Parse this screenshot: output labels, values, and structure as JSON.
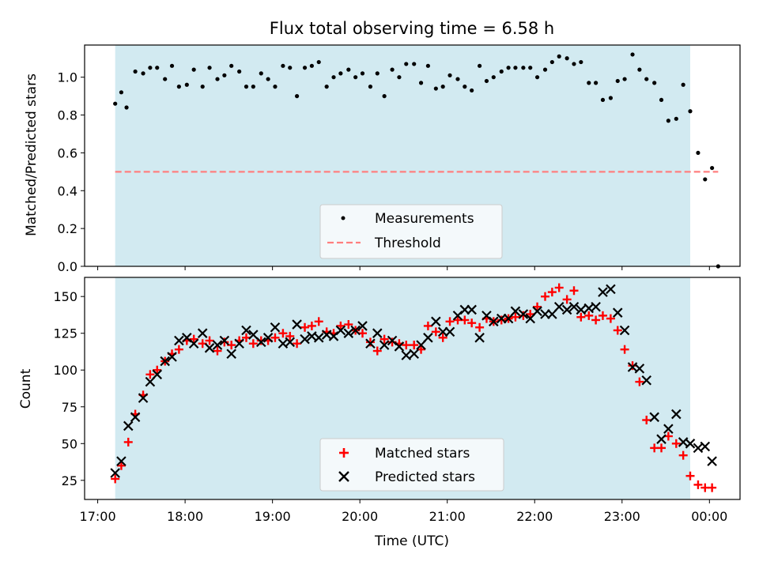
{
  "chart_data": [
    {
      "type": "scatter",
      "title": "Flux total observing time = 6.58 h",
      "ylabel": "Matched/Predicted stars",
      "ylim": [
        0,
        1.17
      ],
      "xlim": [
        16.85,
        24.35
      ],
      "ytick_labels": [
        "0.0",
        "0.2",
        "0.4",
        "0.6",
        "0.8",
        "1.0"
      ],
      "ytick_values": [
        0,
        0.2,
        0.4,
        0.6,
        0.8,
        1.0
      ],
      "shaded_region": {
        "x_start": 17.2,
        "x_end": 23.78,
        "color": "#add8e6"
      },
      "threshold": {
        "value": 0.5,
        "x_start": 17.2,
        "x_end": 24.1,
        "color": "#ff7f7f",
        "style": "dashed"
      },
      "legend": {
        "placement": "lower center",
        "entries": [
          "Measurements",
          "Threshold"
        ]
      },
      "series": [
        {
          "name": "Measurements",
          "marker": "dot",
          "color": "#000000",
          "x": [
            17.2,
            17.27,
            17.33,
            17.43,
            17.52,
            17.6,
            17.68,
            17.77,
            17.85,
            17.93,
            18.02,
            18.1,
            18.2,
            18.28,
            18.37,
            18.45,
            18.53,
            18.62,
            18.7,
            18.78,
            18.87,
            18.95,
            19.03,
            19.12,
            19.2,
            19.28,
            19.37,
            19.45,
            19.53,
            19.62,
            19.7,
            19.78,
            19.87,
            19.95,
            20.03,
            20.12,
            20.2,
            20.28,
            20.37,
            20.45,
            20.53,
            20.62,
            20.7,
            20.78,
            20.87,
            20.95,
            21.03,
            21.12,
            21.2,
            21.28,
            21.37,
            21.45,
            21.53,
            21.62,
            21.7,
            21.78,
            21.87,
            21.95,
            22.03,
            22.12,
            22.2,
            22.28,
            22.37,
            22.45,
            22.53,
            22.62,
            22.7,
            22.78,
            22.87,
            22.95,
            23.03,
            23.12,
            23.2,
            23.28,
            23.37,
            23.45,
            23.53,
            23.62,
            23.7,
            23.78,
            23.87,
            23.95,
            24.03
          ],
          "y": [
            0.86,
            0.92,
            0.84,
            1.03,
            1.02,
            1.05,
            1.05,
            0.99,
            1.06,
            0.95,
            0.96,
            1.04,
            0.95,
            1.05,
            0.99,
            1.01,
            1.06,
            1.03,
            0.95,
            0.95,
            1.02,
            0.99,
            0.95,
            1.06,
            1.05,
            0.9,
            1.05,
            1.06,
            1.08,
            0.95,
            1.0,
            1.02,
            1.04,
            1.0,
            1.02,
            0.95,
            1.02,
            0.9,
            1.04,
            1.0,
            1.07,
            1.07,
            0.97,
            1.06,
            0.94,
            0.95,
            1.01,
            0.99,
            0.95,
            0.93,
            1.06,
            0.98,
            1.0,
            1.03,
            1.05,
            1.05,
            1.05,
            1.05,
            1.0,
            1.04,
            1.08,
            1.11,
            1.1,
            1.07,
            1.08,
            0.97,
            0.97,
            0.88,
            0.89,
            0.98,
            0.99,
            1.12,
            1.04,
            0.99,
            0.97,
            0.88,
            0.77,
            0.78,
            0.96,
            0.82,
            0.6,
            0.46,
            0.52
          ]
        }
      ],
      "extra_points": [
        {
          "x": 24.1,
          "y": 0.0
        }
      ]
    },
    {
      "type": "scatter",
      "xlabel": "Time (UTC)",
      "ylabel": "Count",
      "ylim": [
        12,
        163
      ],
      "xlim": [
        16.85,
        24.35
      ],
      "ytick_labels": [
        "25",
        "50",
        "75",
        "100",
        "125",
        "150"
      ],
      "ytick_values": [
        25,
        50,
        75,
        100,
        125,
        150
      ],
      "xtick_labels": [
        "17:00",
        "18:00",
        "19:00",
        "20:00",
        "21:00",
        "22:00",
        "23:00",
        "00:00"
      ],
      "xtick_values": [
        17,
        18,
        19,
        20,
        21,
        22,
        23,
        24
      ],
      "shaded_region": {
        "x_start": 17.2,
        "x_end": 23.78,
        "color": "#add8e6"
      },
      "legend": {
        "placement": "lower center",
        "entries": [
          "Matched stars",
          "Predicted stars"
        ]
      },
      "series": [
        {
          "name": "Matched stars",
          "marker": "plus",
          "color": "#ff0000",
          "x": [
            17.2,
            17.27,
            17.35,
            17.43,
            17.52,
            17.6,
            17.68,
            17.77,
            17.85,
            17.93,
            18.02,
            18.1,
            18.2,
            18.28,
            18.37,
            18.45,
            18.53,
            18.62,
            18.7,
            18.78,
            18.87,
            18.95,
            19.03,
            19.12,
            19.2,
            19.28,
            19.37,
            19.45,
            19.53,
            19.62,
            19.7,
            19.78,
            19.87,
            19.95,
            20.03,
            20.12,
            20.2,
            20.28,
            20.37,
            20.45,
            20.53,
            20.62,
            20.7,
            20.78,
            20.87,
            20.95,
            21.03,
            21.12,
            21.2,
            21.28,
            21.37,
            21.45,
            21.53,
            21.62,
            21.7,
            21.78,
            21.87,
            21.95,
            22.03,
            22.12,
            22.2,
            22.28,
            22.37,
            22.45,
            22.53,
            22.62,
            22.7,
            22.78,
            22.87,
            22.95,
            23.03,
            23.12,
            23.2,
            23.28,
            23.37,
            23.45,
            23.53,
            23.62,
            23.7,
            23.78,
            23.87,
            23.95,
            24.03
          ],
          "y": [
            26,
            35,
            51,
            70,
            83,
            97,
            100,
            106,
            111,
            114,
            120,
            121,
            118,
            120,
            113,
            119,
            117,
            120,
            122,
            118,
            120,
            120,
            122,
            125,
            123,
            118,
            129,
            130,
            133,
            126,
            125,
            130,
            131,
            127,
            125,
            119,
            113,
            121,
            119,
            118,
            117,
            117,
            114,
            130,
            126,
            122,
            133,
            134,
            134,
            132,
            129,
            135,
            133,
            134,
            135,
            136,
            137,
            138,
            143,
            150,
            153,
            156,
            148,
            154,
            136,
            137,
            134,
            137,
            135,
            127,
            114,
            103,
            92,
            66,
            47,
            47,
            55,
            50,
            42,
            28,
            22,
            20,
            20
          ]
        },
        {
          "name": "Predicted stars",
          "marker": "x",
          "color": "#000000",
          "x": [
            17.2,
            17.27,
            17.35,
            17.43,
            17.52,
            17.6,
            17.68,
            17.77,
            17.85,
            17.93,
            18.02,
            18.1,
            18.2,
            18.28,
            18.37,
            18.45,
            18.53,
            18.62,
            18.7,
            18.78,
            18.87,
            18.95,
            19.03,
            19.12,
            19.2,
            19.28,
            19.37,
            19.45,
            19.53,
            19.62,
            19.7,
            19.78,
            19.87,
            19.95,
            20.03,
            20.12,
            20.2,
            20.28,
            20.37,
            20.45,
            20.53,
            20.62,
            20.7,
            20.78,
            20.87,
            20.95,
            21.03,
            21.12,
            21.2,
            21.28,
            21.37,
            21.45,
            21.53,
            21.62,
            21.7,
            21.78,
            21.87,
            21.95,
            22.03,
            22.12,
            22.2,
            22.28,
            22.37,
            22.45,
            22.53,
            22.62,
            22.7,
            22.78,
            22.87,
            22.95,
            23.03,
            23.12,
            23.2,
            23.28,
            23.37,
            23.45,
            23.53,
            23.62,
            23.7,
            23.78,
            23.87,
            23.95,
            24.03
          ],
          "y": [
            30,
            38,
            62,
            68,
            81,
            92,
            97,
            106,
            109,
            120,
            122,
            118,
            125,
            115,
            117,
            120,
            111,
            118,
            127,
            124,
            119,
            122,
            129,
            118,
            119,
            131,
            121,
            123,
            122,
            124,
            123,
            127,
            125,
            127,
            130,
            118,
            125,
            117,
            120,
            116,
            110,
            111,
            117,
            122,
            133,
            126,
            126,
            137,
            141,
            141,
            122,
            137,
            133,
            135,
            135,
            140,
            138,
            135,
            140,
            138,
            138,
            143,
            141,
            143,
            141,
            142,
            143,
            153,
            155,
            139,
            127,
            102,
            101,
            93,
            68,
            53,
            60,
            70,
            51,
            50,
            47,
            48,
            38
          ]
        }
      ]
    }
  ]
}
